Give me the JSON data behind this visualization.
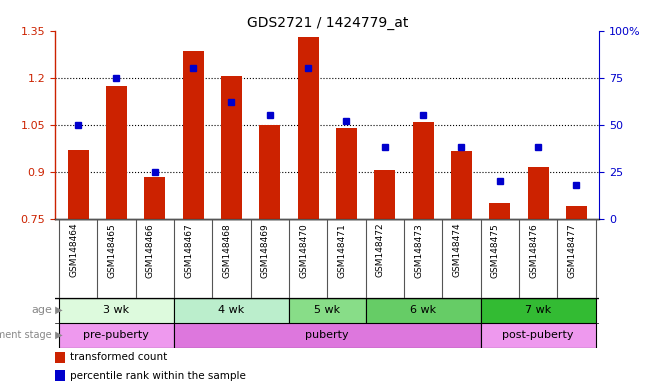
{
  "title": "GDS2721 / 1424779_at",
  "samples": [
    "GSM148464",
    "GSM148465",
    "GSM148466",
    "GSM148467",
    "GSM148468",
    "GSM148469",
    "GSM148470",
    "GSM148471",
    "GSM148472",
    "GSM148473",
    "GSM148474",
    "GSM148475",
    "GSM148476",
    "GSM148477"
  ],
  "bar_values": [
    0.97,
    1.175,
    0.885,
    1.285,
    1.205,
    1.05,
    1.33,
    1.04,
    0.905,
    1.06,
    0.965,
    0.8,
    0.915,
    0.79
  ],
  "dot_percentiles": [
    50,
    75,
    25,
    80,
    62,
    55,
    80,
    52,
    38,
    55,
    38,
    20,
    38,
    18
  ],
  "bar_bottom": 0.75,
  "ylim_left": [
    0.75,
    1.35
  ],
  "ylim_right": [
    0,
    100
  ],
  "yticks_left": [
    0.75,
    0.9,
    1.05,
    1.2,
    1.35
  ],
  "yticks_right": [
    0,
    25,
    50,
    75,
    100
  ],
  "ytick_labels_right": [
    "0",
    "25",
    "50",
    "75",
    "100%"
  ],
  "bar_color": "#cc2200",
  "dot_color": "#0000cc",
  "age_groups": [
    {
      "label": "3 wk",
      "start": 0,
      "end": 3,
      "color": "#ddfadd"
    },
    {
      "label": "4 wk",
      "start": 3,
      "end": 6,
      "color": "#bbeecc"
    },
    {
      "label": "5 wk",
      "start": 6,
      "end": 8,
      "color": "#88dd88"
    },
    {
      "label": "6 wk",
      "start": 8,
      "end": 11,
      "color": "#66cc66"
    },
    {
      "label": "7 wk",
      "start": 11,
      "end": 14,
      "color": "#33bb33"
    }
  ],
  "dev_groups": [
    {
      "label": "pre-puberty",
      "start": 0,
      "end": 3,
      "color": "#ee99ee"
    },
    {
      "label": "puberty",
      "start": 3,
      "end": 11,
      "color": "#dd77dd"
    },
    {
      "label": "post-puberty",
      "start": 11,
      "end": 14,
      "color": "#ee99ee"
    }
  ],
  "legend_bar_label": "transformed count",
  "legend_dot_label": "percentile rank within the sample",
  "tick_area_bg": "#bbbbbb",
  "cell_border_color": "#555555",
  "label_color": "#888888",
  "arrow_color": "#888888"
}
